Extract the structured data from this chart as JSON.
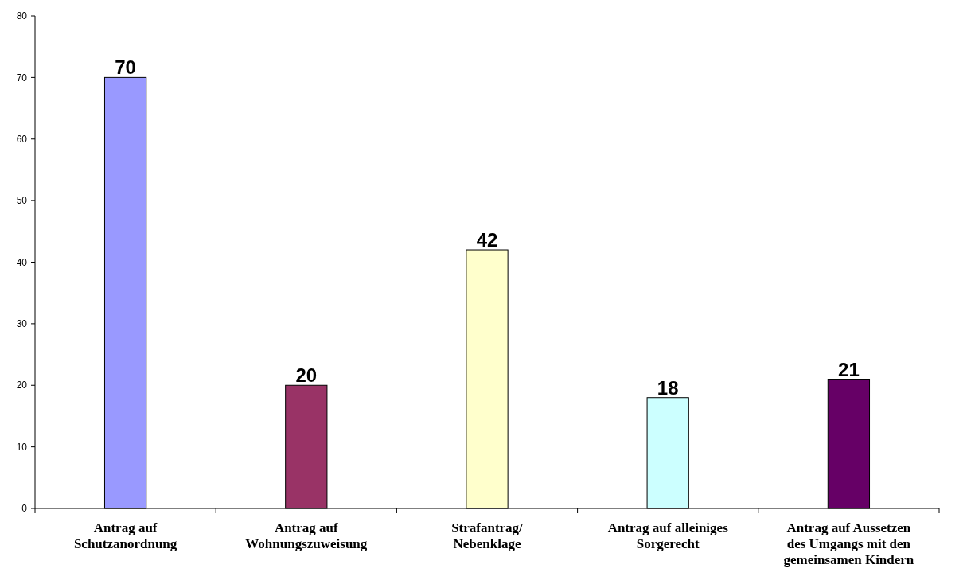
{
  "chart_data": {
    "type": "bar",
    "categories": [
      "Antrag auf\nSchutzanordnung",
      "Antrag auf\nWohnungszuweisung",
      "Strafantrag/\nNebenklage",
      "Antrag auf alleiniges\nSorgerecht",
      "Antrag auf Aussetzen\ndes Umgangs mit den\ngemeinsamen Kindern"
    ],
    "values": [
      70,
      20,
      42,
      18,
      21
    ],
    "colors": [
      "#9999ff",
      "#993366",
      "#ffffcc",
      "#ccffff",
      "#660066"
    ],
    "ylim": [
      0,
      80
    ],
    "yticks": [
      0,
      10,
      20,
      30,
      40,
      50,
      60,
      70,
      80
    ],
    "data_labels": true,
    "grid": false
  }
}
